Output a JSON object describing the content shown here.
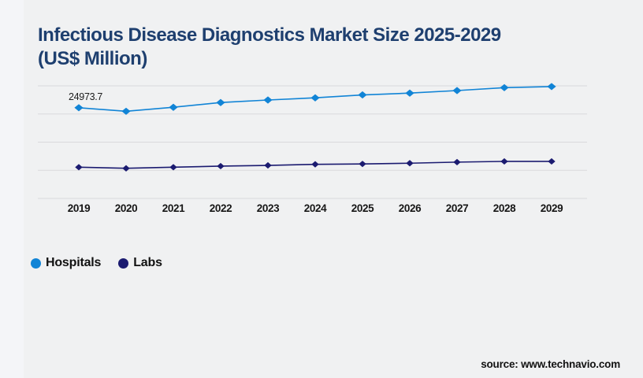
{
  "background": {
    "page": "#f0f1f2",
    "left_strip": "#f4f5f8",
    "gridline": "#d9d9dc"
  },
  "title": {
    "line1": "Infectious Disease Diagnostics Market Size 2025-2029",
    "line2": "(US$ Million)",
    "color": "#1e3f6f"
  },
  "legend": {
    "items": [
      {
        "label": "Hospitals",
        "color": "#1184d6"
      },
      {
        "label": "Labs",
        "color": "#1b1b70"
      }
    ]
  },
  "footer": {
    "source": "source: www.technavio.com"
  },
  "chart_data": {
    "type": "line",
    "title": "Infectious Disease Diagnostics Market Size 2025-2029 (US$ Million)",
    "xlabel": "",
    "ylabel": "",
    "categories": [
      "2019",
      "2020",
      "2021",
      "2022",
      "2023",
      "2024",
      "2025",
      "2026",
      "2027",
      "2028",
      "2029"
    ],
    "series": [
      {
        "name": "Hospitals",
        "color": "#1184d6",
        "marker": "diamond",
        "values": [
          24973.7,
          24000,
          25100,
          26400,
          27100,
          27700,
          28500,
          29000,
          29700,
          30500,
          30800
        ]
      },
      {
        "name": "Labs",
        "color": "#1b1b70",
        "marker": "diamond",
        "values": [
          8600,
          8300,
          8600,
          8900,
          9100,
          9400,
          9500,
          9700,
          10000,
          10200,
          10200
        ]
      }
    ],
    "data_labels": [
      {
        "series": "Hospitals",
        "category": "2019",
        "text": "24973.7"
      }
    ],
    "ylim": [
      0,
      31000
    ],
    "y_gridline_count": 5,
    "y_axis_labels_shown": false,
    "grid": true,
    "legend_position": "bottom-left"
  }
}
